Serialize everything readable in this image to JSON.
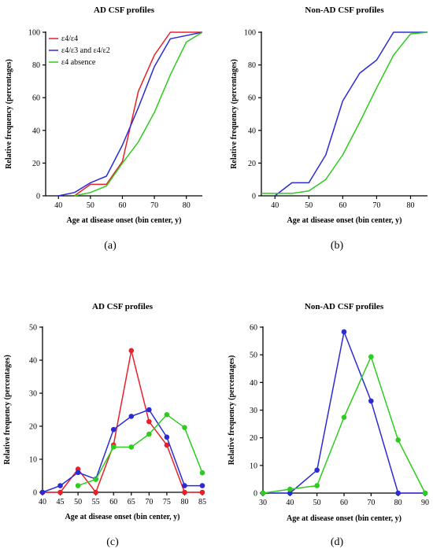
{
  "chart_data": [
    {
      "panel_label": "(a)",
      "type": "line",
      "title": "AD CSF profiles",
      "xlabel": "Age at disease onset (bin center, y)",
      "ylabel": "Relative frequency (percentages)",
      "xlim": [
        36,
        85
      ],
      "ylim": [
        0,
        100
      ],
      "xticks": [
        40,
        50,
        60,
        70,
        80
      ],
      "yticks": [
        0,
        20,
        40,
        60,
        80,
        100
      ],
      "legend_position": "top-left",
      "markers": false,
      "series": [
        {
          "name": "ε4/ε4",
          "color": "#e8202a",
          "x": [
            45,
            50,
            55,
            60,
            65,
            70,
            75,
            80,
            85
          ],
          "y": [
            0,
            7,
            7,
            21,
            64,
            86,
            100,
            100,
            100
          ]
        },
        {
          "name": "ε4/ε3 and ε4/ε2",
          "color": "#2b2bd6",
          "x": [
            40,
            45,
            50,
            55,
            60,
            65,
            70,
            75,
            80,
            85
          ],
          "y": [
            0,
            2,
            8,
            12,
            31,
            54,
            79,
            96,
            98,
            100
          ]
        },
        {
          "name": "ε4 absence",
          "color": "#2ecc1e",
          "x": [
            45,
            50,
            55,
            60,
            65,
            70,
            75,
            80,
            85
          ],
          "y": [
            0,
            2,
            6,
            20,
            33,
            51,
            74,
            94,
            100
          ]
        }
      ]
    },
    {
      "panel_label": "(b)",
      "type": "line",
      "title": "Non-AD CSF profiles",
      "xlabel": "Age at disease onset (bin center, y)",
      "ylabel": "Relative frequency (percentages)",
      "xlim": [
        36,
        85
      ],
      "ylim": [
        0,
        100
      ],
      "xticks": [
        40,
        50,
        60,
        70,
        80
      ],
      "yticks": [
        0,
        20,
        40,
        60,
        80,
        100
      ],
      "markers": false,
      "series": [
        {
          "color": "#2b2bd6",
          "x": [
            40,
            45,
            50,
            55,
            60,
            65,
            70,
            75,
            80,
            85
          ],
          "y": [
            0,
            8,
            8,
            25,
            58,
            75,
            83,
            100,
            100,
            100
          ]
        },
        {
          "color": "#2ecc1e",
          "x": [
            36,
            40,
            45,
            50,
            55,
            60,
            65,
            70,
            75,
            80,
            85
          ],
          "y": [
            1.5,
            1.5,
            1.5,
            3,
            10,
            25,
            45,
            66,
            86,
            99,
            100
          ]
        }
      ]
    },
    {
      "panel_label": "(c)",
      "type": "line",
      "title": "AD CSF profiles",
      "xlabel": "Age at disease onset (bin center, y)",
      "ylabel": "Relative frequency (percentages)",
      "xlim": [
        40,
        85
      ],
      "ylim": [
        0,
        50
      ],
      "xticks": [
        40,
        45,
        50,
        55,
        60,
        65,
        70,
        75,
        80,
        85
      ],
      "yticks": [
        0,
        10,
        20,
        30,
        40,
        50
      ],
      "markers": true,
      "series": [
        {
          "color": "#e8202a",
          "x": [
            40,
            45,
            50,
            55,
            60,
            65,
            70,
            75,
            80,
            85
          ],
          "y": [
            0,
            0,
            7,
            0,
            14.3,
            42.9,
            21.4,
            14.3,
            0,
            0
          ]
        },
        {
          "color": "#2b2bd6",
          "x": [
            40,
            45,
            50,
            55,
            60,
            65,
            70,
            75,
            80,
            85
          ],
          "y": [
            0,
            2,
            6,
            4,
            19,
            23,
            25,
            16.7,
            2,
            2
          ]
        },
        {
          "color": "#2ecc1e",
          "x": [
            50,
            55,
            60,
            65,
            70,
            75,
            80,
            85
          ],
          "y": [
            2,
            3.9,
            13.7,
            13.7,
            17.6,
            23.5,
            19.6,
            5.9
          ]
        }
      ]
    },
    {
      "panel_label": "(d)",
      "type": "line",
      "title": "Non-AD CSF profiles",
      "xlabel": "Age at disease onset (bin center, y)",
      "ylabel": "Relative frequency (percentages)",
      "xlim": [
        30,
        90
      ],
      "ylim": [
        0,
        60
      ],
      "xticks": [
        30,
        40,
        50,
        60,
        70,
        80,
        90
      ],
      "yticks": [
        0,
        10,
        20,
        30,
        40,
        50,
        60
      ],
      "markers": true,
      "series": [
        {
          "color": "#2b2bd6",
          "x": [
            30,
            40,
            50,
            60,
            70,
            80,
            90
          ],
          "y": [
            0,
            0,
            8.3,
            58.3,
            33.3,
            0,
            0
          ]
        },
        {
          "color": "#2ecc1e",
          "x": [
            30,
            40,
            50,
            60,
            70,
            80,
            90
          ],
          "y": [
            0,
            1.4,
            2.7,
            27.4,
            49.3,
            19.2,
            0
          ]
        }
      ]
    }
  ]
}
